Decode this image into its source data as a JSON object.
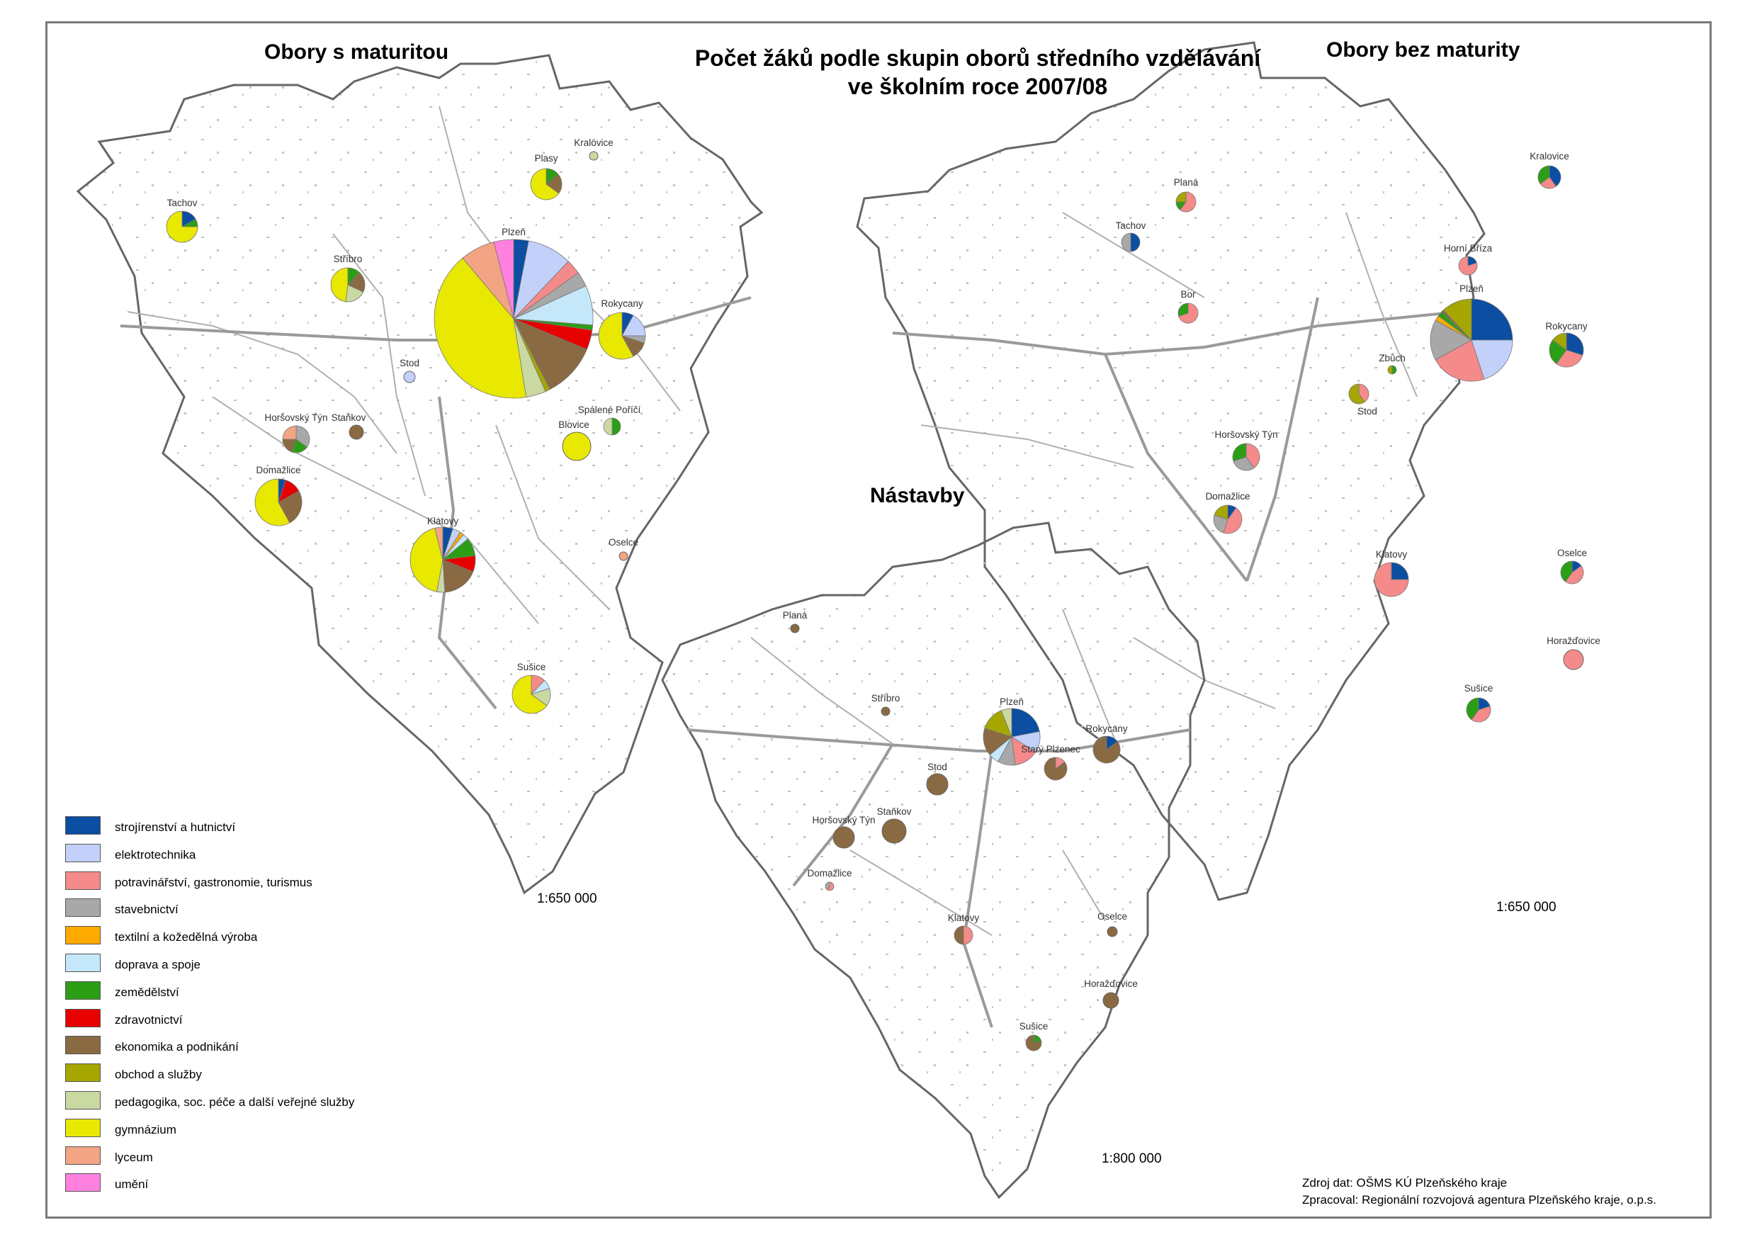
{
  "title": {
    "line1": "Počet žáků podle skupin oborů středního vzdělávání",
    "line2": "ve školním roce 2007/08"
  },
  "legend": [
    {
      "id": "stroj",
      "label": "strojírenství a hutnictví",
      "color": "#0b4ea2"
    },
    {
      "id": "elektro",
      "label": "elektrotechnika",
      "color": "#c3d1fa"
    },
    {
      "id": "potrav",
      "label": "potravinářství, gastronomie, turismus",
      "color": "#f58a8a"
    },
    {
      "id": "staveb",
      "label": "stavebnictví",
      "color": "#a8a8a8"
    },
    {
      "id": "textil",
      "label": "textilní a kožedělná výroba",
      "color": "#ffaa00"
    },
    {
      "id": "doprava",
      "label": "doprava a spoje",
      "color": "#c4e8f9"
    },
    {
      "id": "zemed",
      "label": "zemědělství",
      "color": "#2c9e15"
    },
    {
      "id": "zdrav",
      "label": "zdravotnictví",
      "color": "#e60000"
    },
    {
      "id": "ekon",
      "label": "ekonomika a podnikání",
      "color": "#8a6a43"
    },
    {
      "id": "obchod",
      "label": "obchod a služby",
      "color": "#a6a600"
    },
    {
      "id": "pedag",
      "label": "pedagogika, soc. péče a další veřejné služby",
      "color": "#cad8a2"
    },
    {
      "id": "gymn",
      "label": "gymnázium",
      "color": "#e8e800"
    },
    {
      "id": "lyceum",
      "label": "lyceum",
      "color": "#f2a484"
    },
    {
      "id": "umeni",
      "label": "umění",
      "color": "#ff80df"
    }
  ],
  "maps": [
    {
      "id": "maturita",
      "title": "Obory s maturitou",
      "scale": "1:650 000",
      "towns": [
        {
          "name": "Plzeň",
          "shares": {
            "stroj": 3,
            "elektro": 9,
            "potrav": 3,
            "staveb": 3,
            "doprava": 8,
            "zemed": 1,
            "zdrav": 4,
            "ekon": 11,
            "obchod": 1,
            "pedag": 4,
            "gymn": 41,
            "lyceum": 7,
            "umeni": 4
          }
        },
        {
          "name": "Tachov",
          "shares": {
            "stroj": 17,
            "zemed": 8,
            "gymn": 75
          }
        },
        {
          "name": "Plasy",
          "shares": {
            "zemed": 14,
            "ekon": 21,
            "gymn": 65
          }
        },
        {
          "name": "Kralovice",
          "shares": {
            "pedag": 100
          }
        },
        {
          "name": "Stříbro",
          "shares": {
            "zemed": 12,
            "ekon": 20,
            "pedag": 20,
            "gymn": 48
          }
        },
        {
          "name": "Rokycany",
          "shares": {
            "stroj": 8,
            "elektro": 17,
            "staveb": 5,
            "ekon": 12,
            "gymn": 58
          }
        },
        {
          "name": "Stod",
          "shares": {
            "elektro": 100
          }
        },
        {
          "name": "Horšovský Týn",
          "shares": {
            "staveb": 35,
            "zemed": 20,
            "ekon": 20,
            "lyceum": 25
          }
        },
        {
          "name": "Staňkov",
          "shares": {
            "ekon": 100
          }
        },
        {
          "name": "Spálené Poříčí",
          "shares": {
            "zemed": 50,
            "pedag": 50
          }
        },
        {
          "name": "Blovice",
          "shares": {
            "gymn": 100
          }
        },
        {
          "name": "Domažlice",
          "shares": {
            "stroj": 5,
            "zdrav": 12,
            "ekon": 25,
            "gymn": 58
          }
        },
        {
          "name": "Klatovy",
          "shares": {
            "stroj": 5,
            "elektro": 4,
            "lyceum": 4,
            "textil": 2,
            "doprava": 3,
            "zemed": 9,
            "zdrav": 8,
            "ekon": 18,
            "pedag": 4,
            "gymn": 43
          }
        },
        {
          "name": "Oselce",
          "shares": {
            "lyceum": 100
          }
        },
        {
          "name": "Sušice",
          "shares": {
            "potrav": 12,
            "doprava": 8,
            "pedag": 15,
            "gymn": 65
          }
        }
      ]
    },
    {
      "id": "bez",
      "title": "Obory bez maturity",
      "scale": "1:650 000",
      "towns": [
        {
          "name": "Kralovice",
          "shares": {
            "stroj": 40,
            "zemed": 35,
            "potrav": 25
          }
        },
        {
          "name": "Planá",
          "shares": {
            "potrav": 60,
            "obchod": 25,
            "zemed": 15
          }
        },
        {
          "name": "Tachov",
          "shares": {
            "stroj": 50,
            "staveb": 50
          }
        },
        {
          "name": "Horní Bříza",
          "shares": {
            "potrav": 80,
            "stroj": 20
          }
        },
        {
          "name": "Bor",
          "shares": {
            "zemed": 30,
            "potrav": 70
          }
        },
        {
          "name": "Plzeň",
          "shares": {
            "stroj": 25,
            "elektro": 20,
            "potrav": 22,
            "staveb": 16,
            "textil": 2,
            "zemed": 2,
            "ekon": 1,
            "obchod": 12
          }
        },
        {
          "name": "Rokycany",
          "shares": {
            "stroj": 30,
            "potrav": 30,
            "zemed": 25,
            "obchod": 15
          }
        },
        {
          "name": "Zbůch",
          "shares": {
            "zemed": 50,
            "obchod": 50
          }
        },
        {
          "name": "Stod",
          "shares": {
            "potrav": 40,
            "obchod": 60
          }
        },
        {
          "name": "Horšovský Týn",
          "shares": {
            "potrav": 40,
            "staveb": 30,
            "zemed": 30
          }
        },
        {
          "name": "Domažlice",
          "shares": {
            "potrav": 45,
            "staveb": 25,
            "obchod": 20,
            "stroj": 10
          }
        },
        {
          "name": "Klatovy",
          "shares": {
            "stroj": 25,
            "potrav": 75
          }
        },
        {
          "name": "Oselce",
          "shares": {
            "stroj": 15,
            "potrav": 45,
            "zemed": 40
          }
        },
        {
          "name": "Horažďovice",
          "shares": {
            "potrav": 100
          }
        },
        {
          "name": "Sušice",
          "shares": {
            "stroj": 20,
            "potrav": 40,
            "zemed": 40
          }
        }
      ]
    },
    {
      "id": "nastavby",
      "title": "Nástavby",
      "scale": "1:800 000",
      "towns": [
        {
          "name": "Planá",
          "shares": {
            "ekon": 100
          }
        },
        {
          "name": "Stříbro",
          "shares": {
            "ekon": 100
          }
        },
        {
          "name": "Plzeň",
          "shares": {
            "stroj": 22,
            "elektro": 12,
            "potrav": 14,
            "staveb": 10,
            "doprava": 6,
            "ekon": 16,
            "obchod": 14,
            "pedag": 6
          }
        },
        {
          "name": "Rokycany",
          "shares": {
            "stroj": 15,
            "ekon": 85
          }
        },
        {
          "name": "Starý Plzenec",
          "shares": {
            "ekon": 85,
            "potrav": 15
          }
        },
        {
          "name": "Stod",
          "shares": {
            "ekon": 100
          }
        },
        {
          "name": "Horšovský Týn",
          "shares": {
            "ekon": 100
          }
        },
        {
          "name": "Staňkov",
          "shares": {
            "ekon": 100
          }
        },
        {
          "name": "Domažlice",
          "shares": {
            "potrav": 60,
            "staveb": 40
          }
        },
        {
          "name": "Klatovy",
          "shares": {
            "potrav": 50,
            "ekon": 50
          }
        },
        {
          "name": "Oselce",
          "shares": {
            "ekon": 100
          }
        },
        {
          "name": "Horažďovice",
          "shares": {
            "ekon": 100
          }
        },
        {
          "name": "Sušice",
          "shares": {
            "ekon": 80,
            "zemed": 20
          }
        }
      ]
    }
  ],
  "source": {
    "data": "Zdroj dat: OŠMS KÚ Plzeňského kraje",
    "author": "Zpracoval: Regionální rozvojová agentura Plzeňského kraje, o.p.s."
  }
}
